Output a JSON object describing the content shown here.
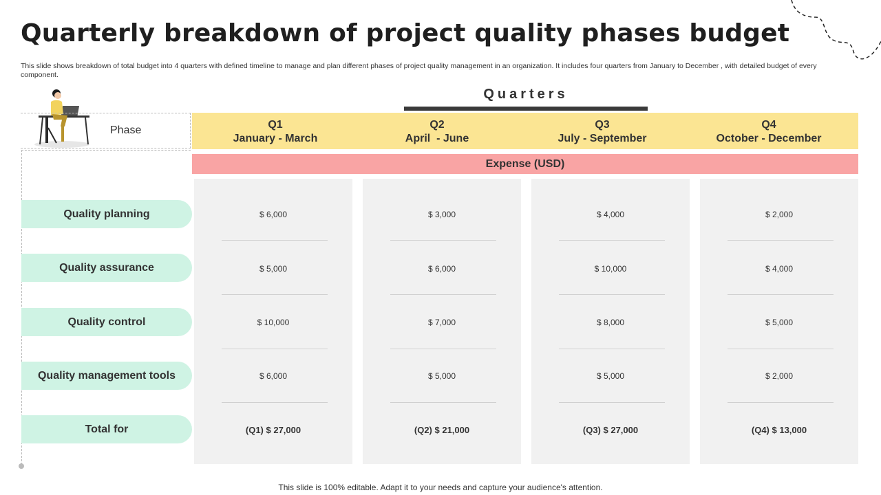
{
  "slide": {
    "title": "Quarterly breakdown of project quality phases budget",
    "subtitle": "This slide shows breakdown of total budget into 4 quarters with defined timeline to manage and plan different phases of project quality management in an organization. It includes four quarters from January to December , with detailed budget of every component.",
    "footer": "This slide is 100% editable. Adapt it to your needs and capture your audience's attention."
  },
  "table": {
    "phase_label": "Phase",
    "quarters_label": "Quarters",
    "expense_label": "Expense (USD)",
    "quarters": [
      {
        "q": "Q1",
        "range": "January - March"
      },
      {
        "q": "Q2",
        "range": "April  - June"
      },
      {
        "q": "Q3",
        "range": "July - September"
      },
      {
        "q": "Q4",
        "range": "October - December"
      }
    ],
    "rows": [
      {
        "label": "Quality planning",
        "values": [
          "$ 6,000",
          "$ 3,000",
          "$ 4,000",
          "$ 2,000"
        ]
      },
      {
        "label": "Quality assurance",
        "values": [
          "$ 5,000",
          "$ 6,000",
          "$ 10,000",
          "$ 4,000"
        ]
      },
      {
        "label": "Quality control",
        "values": [
          "$ 10,000",
          "$ 7,000",
          "$ 8,000",
          "$ 5,000"
        ]
      },
      {
        "label": "Quality management tools",
        "values": [
          "$ 6,000",
          "$ 5,000",
          "$ 5,000",
          "$ 2,000"
        ]
      },
      {
        "label": "Total for",
        "values": [
          "(Q1) $ 27,000",
          "(Q2) $ 21,000",
          "(Q3) $ 27,000",
          "(Q4) $ 13,000"
        ]
      }
    ]
  },
  "colors": {
    "header_yellow": "#fbe593",
    "expense_pink": "#f9a4a4",
    "label_mint": "#cff3e4",
    "column_gray": "#f1f1f1"
  },
  "icons": [
    "person-at-desk-icon",
    "dashed-curve-decoration"
  ]
}
